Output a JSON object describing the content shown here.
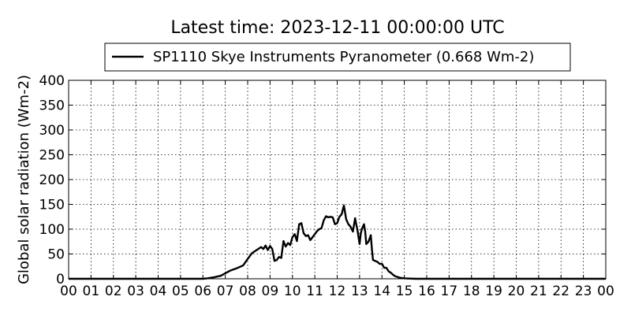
{
  "chart_data": {
    "type": "line",
    "title": "Latest time: 2023-12-11 00:00:00 UTC",
    "xlabel": "",
    "ylabel": "Global solar radiation (Wm-2)",
    "xlim": [
      0,
      24
    ],
    "ylim": [
      0,
      400
    ],
    "xticks": [
      "00",
      "01",
      "02",
      "03",
      "04",
      "05",
      "06",
      "07",
      "08",
      "09",
      "10",
      "11",
      "12",
      "13",
      "14",
      "15",
      "16",
      "17",
      "18",
      "19",
      "20",
      "21",
      "22",
      "23",
      "00"
    ],
    "yticks": [
      0,
      50,
      100,
      150,
      200,
      250,
      300,
      350,
      400
    ],
    "grid": true,
    "legend_position": "top-center",
    "line_color": "#000000",
    "series": [
      {
        "name": "SP1110 Skye Instruments Pyranometer (0.668 Wm-2)",
        "x": [
          0,
          6.0,
          6.2,
          6.5,
          6.8,
          7.0,
          7.2,
          7.5,
          7.8,
          8.0,
          8.2,
          8.4,
          8.6,
          8.7,
          8.8,
          8.9,
          9.0,
          9.1,
          9.2,
          9.3,
          9.4,
          9.5,
          9.6,
          9.7,
          9.8,
          9.9,
          10.0,
          10.1,
          10.2,
          10.3,
          10.4,
          10.5,
          10.6,
          10.7,
          10.8,
          10.9,
          11.0,
          11.1,
          11.2,
          11.3,
          11.4,
          11.5,
          11.6,
          11.7,
          11.8,
          11.9,
          12.0,
          12.1,
          12.2,
          12.3,
          12.4,
          12.45,
          12.5,
          12.6,
          12.7,
          12.8,
          12.85,
          12.9,
          13.0,
          13.05,
          13.1,
          13.2,
          13.25,
          13.3,
          13.4,
          13.5,
          13.55,
          13.6,
          13.7,
          13.8,
          13.9,
          14.0,
          14.1,
          14.2,
          14.3,
          14.4,
          14.5,
          14.6,
          14.8,
          15.0,
          15.2,
          15.5,
          16.0,
          24
        ],
        "y": [
          0,
          0,
          1,
          3,
          6,
          11,
          16,
          21,
          27,
          40,
          52,
          58,
          64,
          60,
          67,
          58,
          66,
          60,
          36,
          38,
          44,
          42,
          76,
          65,
          72,
          68,
          84,
          90,
          76,
          110,
          112,
          92,
          86,
          88,
          78,
          84,
          90,
          96,
          100,
          102,
          118,
          126,
          124,
          125,
          124,
          110,
          112,
          125,
          130,
          148,
          120,
          115,
          110,
          105,
          95,
          122,
          110,
          100,
          70,
          90,
          100,
          110,
          95,
          70,
          75,
          88,
          60,
          38,
          36,
          34,
          30,
          30,
          22,
          22,
          15,
          12,
          8,
          5,
          2,
          1,
          0.5,
          0,
          0,
          0
        ]
      }
    ]
  }
}
